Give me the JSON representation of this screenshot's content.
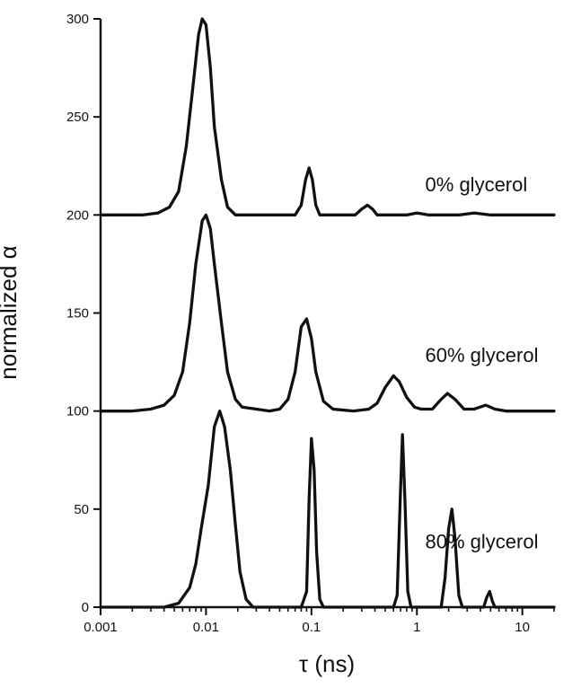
{
  "chart_data": {
    "type": "line",
    "title": "",
    "xlabel": "τ (ns)",
    "ylabel": "normalized α",
    "x_scale": "log",
    "xlim": [
      0.001,
      20
    ],
    "ylim": [
      0,
      300
    ],
    "grid": false,
    "x_ticks": [
      {
        "value": 0.001,
        "label": "0.001"
      },
      {
        "value": 0.01,
        "label": "0.01"
      },
      {
        "value": 0.1,
        "label": "0.1"
      },
      {
        "value": 1,
        "label": "1"
      },
      {
        "value": 10,
        "label": "10"
      }
    ],
    "y_ticks": [
      {
        "value": 0,
        "label": "0"
      },
      {
        "value": 50,
        "label": "50"
      },
      {
        "value": 100,
        "label": "100"
      },
      {
        "value": 150,
        "label": "150"
      },
      {
        "value": 200,
        "label": "200"
      },
      {
        "value": 250,
        "label": "250"
      },
      {
        "value": 300,
        "label": "300"
      }
    ],
    "series": [
      {
        "name": "0% glycerol",
        "label_position": {
          "x": 1.2,
          "y": 212
        },
        "points": [
          [
            0.001,
            200
          ],
          [
            0.0025,
            200
          ],
          [
            0.0035,
            201
          ],
          [
            0.0045,
            204
          ],
          [
            0.0055,
            212
          ],
          [
            0.0065,
            235
          ],
          [
            0.0075,
            265
          ],
          [
            0.0085,
            292
          ],
          [
            0.0092,
            300
          ],
          [
            0.01,
            297
          ],
          [
            0.011,
            275
          ],
          [
            0.012,
            245
          ],
          [
            0.014,
            218
          ],
          [
            0.016,
            204
          ],
          [
            0.019,
            200
          ],
          [
            0.07,
            200
          ],
          [
            0.08,
            205
          ],
          [
            0.088,
            218
          ],
          [
            0.095,
            224
          ],
          [
            0.102,
            218
          ],
          [
            0.11,
            205
          ],
          [
            0.12,
            200
          ],
          [
            0.26,
            200
          ],
          [
            0.3,
            203
          ],
          [
            0.34,
            205
          ],
          [
            0.38,
            203
          ],
          [
            0.42,
            200
          ],
          [
            0.8,
            200
          ],
          [
            1.0,
            201
          ],
          [
            1.3,
            200
          ],
          [
            2.5,
            200
          ],
          [
            3.5,
            201
          ],
          [
            5,
            200
          ],
          [
            20,
            200
          ]
        ]
      },
      {
        "name": "60% glycerol",
        "label_position": {
          "x": 1.2,
          "y": 125
        },
        "points": [
          [
            0.001,
            100
          ],
          [
            0.002,
            100
          ],
          [
            0.003,
            101
          ],
          [
            0.004,
            103
          ],
          [
            0.005,
            108
          ],
          [
            0.006,
            120
          ],
          [
            0.007,
            145
          ],
          [
            0.008,
            175
          ],
          [
            0.0092,
            197
          ],
          [
            0.01,
            200
          ],
          [
            0.011,
            193
          ],
          [
            0.012,
            175
          ],
          [
            0.014,
            145
          ],
          [
            0.016,
            120
          ],
          [
            0.019,
            106
          ],
          [
            0.022,
            102
          ],
          [
            0.03,
            101
          ],
          [
            0.04,
            100
          ],
          [
            0.05,
            101
          ],
          [
            0.06,
            106
          ],
          [
            0.07,
            120
          ],
          [
            0.08,
            143
          ],
          [
            0.09,
            147
          ],
          [
            0.1,
            137
          ],
          [
            0.11,
            120
          ],
          [
            0.13,
            105
          ],
          [
            0.16,
            101
          ],
          [
            0.25,
            100
          ],
          [
            0.35,
            101
          ],
          [
            0.42,
            104
          ],
          [
            0.5,
            112
          ],
          [
            0.6,
            118
          ],
          [
            0.68,
            115
          ],
          [
            0.8,
            107
          ],
          [
            0.95,
            102
          ],
          [
            1.1,
            101
          ],
          [
            1.4,
            101
          ],
          [
            1.7,
            106
          ],
          [
            1.95,
            109
          ],
          [
            2.3,
            106
          ],
          [
            2.8,
            101
          ],
          [
            3.5,
            101
          ],
          [
            4.5,
            103
          ],
          [
            5.5,
            101
          ],
          [
            7,
            100
          ],
          [
            20,
            100
          ]
        ]
      },
      {
        "name": "80% glycerol",
        "label_position": {
          "x": 1.2,
          "y": 30
        },
        "points": [
          [
            0.001,
            0
          ],
          [
            0.004,
            0
          ],
          [
            0.0055,
            2
          ],
          [
            0.007,
            10
          ],
          [
            0.008,
            22
          ],
          [
            0.009,
            40
          ],
          [
            0.0105,
            62
          ],
          [
            0.012,
            92
          ],
          [
            0.0135,
            100
          ],
          [
            0.015,
            92
          ],
          [
            0.017,
            70
          ],
          [
            0.019,
            42
          ],
          [
            0.021,
            18
          ],
          [
            0.024,
            4
          ],
          [
            0.028,
            0
          ],
          [
            0.08,
            0
          ],
          [
            0.09,
            8
          ],
          [
            0.095,
            55
          ],
          [
            0.1,
            86
          ],
          [
            0.106,
            70
          ],
          [
            0.112,
            28
          ],
          [
            0.12,
            4
          ],
          [
            0.13,
            0
          ],
          [
            0.6,
            0
          ],
          [
            0.65,
            6
          ],
          [
            0.7,
            60
          ],
          [
            0.73,
            88
          ],
          [
            0.77,
            55
          ],
          [
            0.82,
            8
          ],
          [
            0.88,
            0
          ],
          [
            1.7,
            0
          ],
          [
            1.85,
            15
          ],
          [
            2.0,
            40
          ],
          [
            2.15,
            50
          ],
          [
            2.3,
            35
          ],
          [
            2.5,
            6
          ],
          [
            2.7,
            0
          ],
          [
            4.3,
            0
          ],
          [
            4.6,
            5
          ],
          [
            4.9,
            8
          ],
          [
            5.2,
            3
          ],
          [
            5.5,
            0
          ],
          [
            20,
            0
          ]
        ]
      }
    ]
  }
}
